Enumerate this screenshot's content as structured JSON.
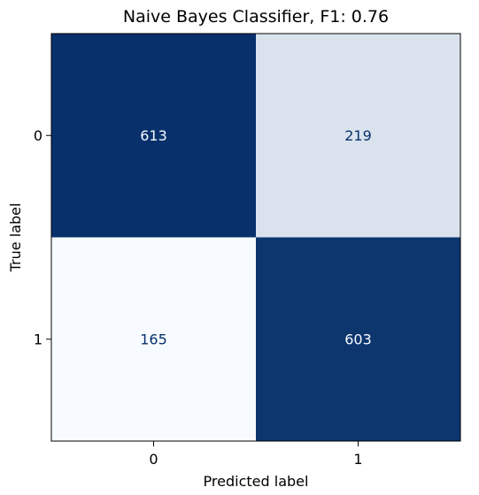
{
  "chart_data": {
    "type": "heatmap",
    "title": "Naive Bayes Classifier, F1: 0.76",
    "xlabel": "Predicted label",
    "ylabel": "True label",
    "x_categories": [
      "0",
      "1"
    ],
    "y_categories": [
      "0",
      "1"
    ],
    "matrix": [
      [
        613,
        219
      ],
      [
        165,
        603
      ]
    ],
    "colormap": "Blues",
    "colors": {
      "low": "#f7fbff",
      "high": "#08306b",
      "text_on_dark": "#f7fbff",
      "text_on_light": "#08306b"
    }
  }
}
